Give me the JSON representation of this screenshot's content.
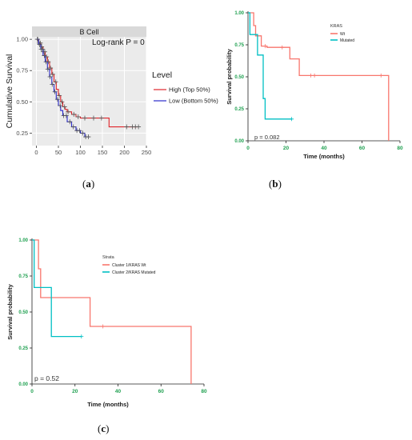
{
  "panels": [
    {
      "label": "(a)",
      "letter": "a"
    },
    {
      "label": "(b)",
      "letter": "b"
    },
    {
      "label": "(c)",
      "letter": "c"
    }
  ],
  "chart_data": [
    {
      "type": "line",
      "strip_title": "B Cell",
      "annotation": "Log-rank P = 0",
      "xlabel": "",
      "ylabel": "Cumulative Survival",
      "xlim": [
        -10,
        250
      ],
      "ylim": [
        0.15,
        1.02
      ],
      "xticks": [
        0,
        50,
        100,
        150,
        200,
        250
      ],
      "yticks": [
        0.25,
        0.5,
        0.75,
        1.0
      ],
      "ytick_labels": [
        "0.25",
        "0.50",
        "0.75",
        "1.00"
      ],
      "xtick_labels": [
        "0",
        "50",
        "100",
        "150",
        "200",
        "250"
      ],
      "legend_title": "Level",
      "legend_position": "right",
      "grid": true,
      "series": [
        {
          "name": "High (Top 50%)",
          "color": "#e0242a",
          "x": [
            0,
            5,
            10,
            15,
            20,
            25,
            30,
            35,
            40,
            45,
            50,
            55,
            60,
            65,
            70,
            80,
            90,
            100,
            120,
            140,
            165,
            200,
            230
          ],
          "y": [
            1.0,
            0.97,
            0.94,
            0.9,
            0.86,
            0.82,
            0.77,
            0.72,
            0.66,
            0.6,
            0.55,
            0.5,
            0.46,
            0.44,
            0.42,
            0.4,
            0.38,
            0.37,
            0.37,
            0.37,
            0.3,
            0.3,
            0.3
          ],
          "censor_x": [
            2,
            6,
            9,
            12,
            16,
            19,
            23,
            27,
            32,
            37,
            44,
            52,
            58,
            64,
            72,
            85,
            95,
            110,
            130,
            148,
            205,
            218,
            225,
            232
          ]
        },
        {
          "name": "Low (Bottom 50%)",
          "color": "#2b2bcc",
          "x": [
            0,
            5,
            10,
            15,
            20,
            25,
            30,
            35,
            40,
            45,
            50,
            55,
            60,
            70,
            80,
            90,
            100,
            110,
            120
          ],
          "y": [
            1.0,
            0.96,
            0.92,
            0.87,
            0.82,
            0.76,
            0.7,
            0.64,
            0.58,
            0.52,
            0.47,
            0.43,
            0.39,
            0.34,
            0.3,
            0.27,
            0.25,
            0.22,
            0.22
          ],
          "censor_x": [
            3,
            7,
            11,
            14,
            18,
            22,
            26,
            31,
            36,
            42,
            48,
            54,
            62,
            68,
            76,
            84,
            92,
            98,
            105,
            112,
            118
          ]
        }
      ]
    },
    {
      "type": "line",
      "legend_title": "KRAS",
      "legend_position": "top-right",
      "annotation": "p = 0.082",
      "xlabel": "Time (months)",
      "ylabel": "Survival probability",
      "xlim": [
        0,
        80
      ],
      "ylim": [
        0,
        1
      ],
      "xticks": [
        0,
        20,
        40,
        60,
        80
      ],
      "yticks": [
        0,
        0.25,
        0.5,
        0.75,
        1.0
      ],
      "ytick_labels": [
        "0.00",
        "0.25",
        "0.50",
        "0.75",
        "1.00"
      ],
      "xtick_labels": [
        "0",
        "20",
        "40",
        "60",
        "80"
      ],
      "grid": false,
      "series": [
        {
          "name": "Wt",
          "color": "#f8766d",
          "x": [
            0,
            1,
            3,
            4,
            6,
            7,
            8,
            10,
            17,
            22,
            27,
            74
          ],
          "y": [
            1.0,
            1.0,
            0.9,
            0.82,
            0.82,
            0.74,
            0.74,
            0.73,
            0.73,
            0.64,
            0.51,
            0.0
          ],
          "censor_x": [
            9,
            18,
            33,
            35,
            70
          ]
        },
        {
          "name": "Mutated",
          "color": "#00bfc4",
          "x": [
            0,
            0.5,
            1,
            3,
            5,
            7,
            8,
            9,
            23
          ],
          "y": [
            1.0,
            1.0,
            0.83,
            0.83,
            0.67,
            0.67,
            0.33,
            0.17,
            0.17
          ],
          "censor_x": [
            23
          ]
        }
      ]
    },
    {
      "type": "line",
      "legend_title": "Strata",
      "legend_position": "top-right",
      "annotation": "p = 0.52",
      "xlabel": "Time (months)",
      "ylabel": "Survival probability",
      "xlim": [
        0,
        80
      ],
      "ylim": [
        0,
        1
      ],
      "xticks": [
        0,
        20,
        40,
        60,
        80
      ],
      "yticks": [
        0,
        0.25,
        0.5,
        0.75,
        1.0
      ],
      "ytick_labels": [
        "0.00",
        "0.25",
        "0.50",
        "0.75",
        "1.00"
      ],
      "xtick_labels": [
        "0",
        "20",
        "40",
        "60",
        "80"
      ],
      "grid": false,
      "series": [
        {
          "name": "Cluster 1/KRAS Wt",
          "color": "#f8766d",
          "x": [
            0,
            3,
            4,
            27,
            74
          ],
          "y": [
            1.0,
            0.8,
            0.6,
            0.4,
            0.0
          ],
          "censor_x": [
            33
          ]
        },
        {
          "name": "Cluster 2/KRAS Mutated",
          "color": "#00bfc4",
          "x": [
            0,
            1,
            9,
            23
          ],
          "y": [
            1.0,
            0.67,
            0.33,
            0.33
          ],
          "censor_x": [
            23
          ]
        }
      ]
    }
  ]
}
